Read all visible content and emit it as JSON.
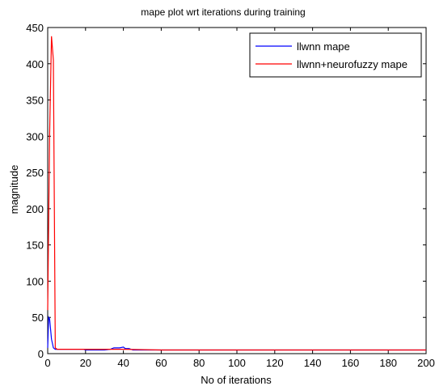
{
  "chart_data": {
    "type": "line",
    "title": "mape plot wrt iterations during training",
    "xlabel": "No of iterations",
    "ylabel": "magnitude",
    "xlim": [
      0,
      200
    ],
    "ylim": [
      0,
      450
    ],
    "xticks": [
      0,
      20,
      40,
      60,
      80,
      100,
      120,
      140,
      160,
      180,
      200
    ],
    "yticks": [
      0,
      50,
      100,
      150,
      200,
      250,
      300,
      350,
      400,
      450
    ],
    "grid": false,
    "legend_position": "top-right",
    "series": [
      {
        "name": "llwnn mape",
        "color": "#0000ff",
        "points": [
          [
            0,
            8
          ],
          [
            0.5,
            50
          ],
          [
            1,
            48
          ],
          [
            2,
            20
          ],
          [
            3,
            8
          ],
          [
            4,
            6
          ],
          [
            5,
            6
          ],
          [
            10,
            6
          ],
          [
            15,
            6
          ],
          [
            19,
            6
          ],
          [
            20,
            5
          ],
          [
            25,
            5
          ],
          [
            30,
            5
          ],
          [
            33,
            6
          ],
          [
            35,
            8
          ],
          [
            38,
            8
          ],
          [
            40,
            9
          ],
          [
            41,
            7
          ],
          [
            43,
            7
          ],
          [
            45,
            5
          ],
          [
            47,
            5
          ],
          [
            50,
            5
          ],
          [
            60,
            5
          ],
          [
            80,
            5
          ],
          [
            100,
            5
          ],
          [
            120,
            5
          ],
          [
            140,
            5
          ],
          [
            160,
            5
          ],
          [
            180,
            5
          ],
          [
            200,
            5
          ]
        ]
      },
      {
        "name": "llwnn+neurofuzzy mape",
        "color": "#ff0000",
        "points": [
          [
            0,
            60
          ],
          [
            1,
            300
          ],
          [
            2,
            438
          ],
          [
            3,
            405
          ],
          [
            4,
            8
          ],
          [
            5,
            6
          ],
          [
            20,
            6
          ],
          [
            40,
            6
          ],
          [
            60,
            5
          ],
          [
            80,
            5
          ],
          [
            100,
            5
          ],
          [
            120,
            5
          ],
          [
            140,
            5
          ],
          [
            160,
            5
          ],
          [
            180,
            5
          ],
          [
            200,
            5
          ]
        ]
      }
    ]
  }
}
